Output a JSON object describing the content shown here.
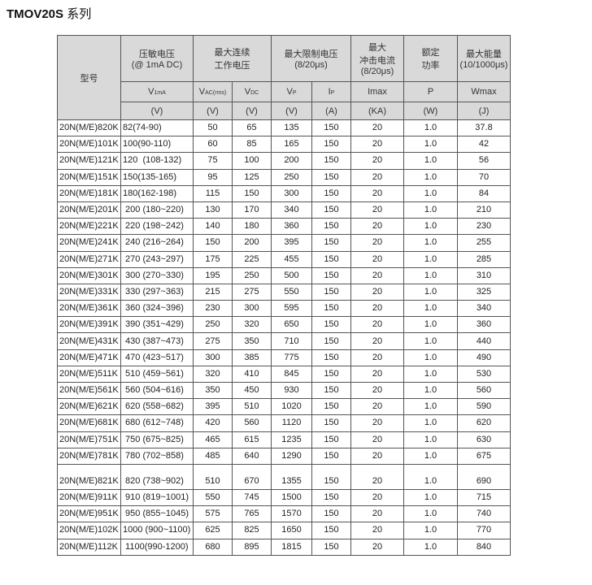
{
  "title": "TMOV20S",
  "title_suffix": "系列",
  "header": {
    "model": "型号",
    "varistor": "压敏电压",
    "varistor_cond": "(@ 1mA DC)",
    "cont1": "最大连续",
    "cont2": "工作电压",
    "clamp": "最大限制电压",
    "clamp_cond": "(8/20μs)",
    "surge1": "最大",
    "surge2": "冲击电流",
    "surge_cond": "(8/20μs)",
    "power1": "额定",
    "power2": "功率",
    "energy": "最大能量",
    "energy_cond": "(10/1000μs)",
    "sym_v1ma": "V",
    "sym_v1ma_sub": "1mA",
    "sym_vac": "V",
    "sym_vac_sub": "AC(rms)",
    "sym_vdc": "V",
    "sym_vdc_sub": "DC",
    "sym_vp": "V",
    "sym_vp_sub": "P",
    "sym_ip": "I",
    "sym_ip_sub": "P",
    "sym_imax": "Imax",
    "sym_p": "P",
    "sym_wmax": "Wmax",
    "units": [
      "(V)",
      "(V)",
      "(V)",
      "(V)",
      "(A)",
      "(KA)",
      "(W)",
      "(J)"
    ]
  },
  "rows": [
    [
      "20N(M/E)820K",
      "82(74-90)",
      "50",
      "65",
      "135",
      "150",
      "20",
      "1.0",
      "37.8"
    ],
    [
      "20N(M/E)101K",
      "100(90-110)",
      "60",
      "85",
      "165",
      "150",
      "20",
      "1.0",
      "42"
    ],
    [
      "20N(M/E)121K",
      "120  (108-132)",
      "75",
      "100",
      "200",
      "150",
      "20",
      "1.0",
      "56"
    ],
    [
      "20N(M/E)151K",
      "150(135-165)",
      "95",
      "125",
      "250",
      "150",
      "20",
      "1.0",
      "70"
    ],
    [
      "20N(M/E)181K",
      "180(162-198)",
      "115",
      "150",
      "300",
      "150",
      "20",
      "1.0",
      "84"
    ],
    [
      "20N(M/E)201K",
      " 200 (180~220)",
      "130",
      "170",
      "340",
      "150",
      "20",
      "1.0",
      "210"
    ],
    [
      "20N(M/E)221K",
      " 220 (198~242)",
      "140",
      "180",
      "360",
      "150",
      "20",
      "1.0",
      "230"
    ],
    [
      "20N(M/E)241K",
      " 240 (216~264)",
      "150",
      "200",
      "395",
      "150",
      "20",
      "1.0",
      "255"
    ],
    [
      "20N(M/E)271K",
      " 270 (243~297)",
      "175",
      "225",
      "455",
      "150",
      "20",
      "1.0",
      "285"
    ],
    [
      "20N(M/E)301K",
      " 300 (270~330)",
      "195",
      "250",
      "500",
      "150",
      "20",
      "1.0",
      "310"
    ],
    [
      "20N(M/E)331K",
      " 330 (297~363)",
      "215",
      "275",
      "550",
      "150",
      "20",
      "1.0",
      "325"
    ],
    [
      "20N(M/E)361K",
      " 360 (324~396)",
      "230",
      "300",
      "595",
      "150",
      "20",
      "1.0",
      "340"
    ],
    [
      "20N(M/E)391K",
      " 390 (351~429)",
      "250",
      "320",
      "650",
      "150",
      "20",
      "1.0",
      "360"
    ],
    [
      "20N(M/E)431K",
      " 430 (387~473)",
      "275",
      "350",
      "710",
      "150",
      "20",
      "1.0",
      "440"
    ],
    [
      "20N(M/E)471K",
      " 470 (423~517)",
      "300",
      "385",
      "775",
      "150",
      "20",
      "1.0",
      "490"
    ],
    [
      "20N(M/E)511K",
      " 510 (459~561)",
      "320",
      "410",
      "845",
      "150",
      "20",
      "1.0",
      "530"
    ],
    [
      "20N(M/E)561K",
      " 560 (504~616)",
      "350",
      "450",
      "930",
      "150",
      "20",
      "1.0",
      "560"
    ],
    [
      "20N(M/E)621K",
      " 620 (558~682)",
      "395",
      "510",
      "1020",
      "150",
      "20",
      "1.0",
      "590"
    ],
    [
      "20N(M/E)681K",
      " 680 (612~748)",
      "420",
      "560",
      "1120",
      "150",
      "20",
      "1.0",
      "620"
    ],
    [
      "20N(M/E)751K",
      " 750 (675~825)",
      "465",
      "615",
      "1235",
      "150",
      "20",
      "1.0",
      "630"
    ],
    [
      "20N(M/E)781K",
      " 780 (702~858)",
      "485",
      "640",
      "1290",
      "150",
      "20",
      "1.0",
      "675"
    ],
    [
      "20N(M/E)821K",
      " 820 (738~902)",
      "510",
      "670",
      "1355",
      "150",
      "20",
      "1.0",
      "690"
    ],
    [
      "20N(M/E)911K",
      " 910 (819~1001)",
      "550",
      "745",
      "1500",
      "150",
      "20",
      "1.0",
      "715"
    ],
    [
      "20N(M/E)951K",
      " 950 (855~1045)",
      "575",
      "765",
      "1570",
      "150",
      "20",
      "1.0",
      "740"
    ],
    [
      "20N(M/E)102K",
      "1000 (900~1100)",
      "625",
      "825",
      "1650",
      "150",
      "20",
      "1.0",
      "770"
    ],
    [
      "20N(M/E)112K",
      " 1100(990-1200)",
      "680",
      "895",
      "1815",
      "150",
      "20",
      "1.0",
      "840"
    ]
  ]
}
